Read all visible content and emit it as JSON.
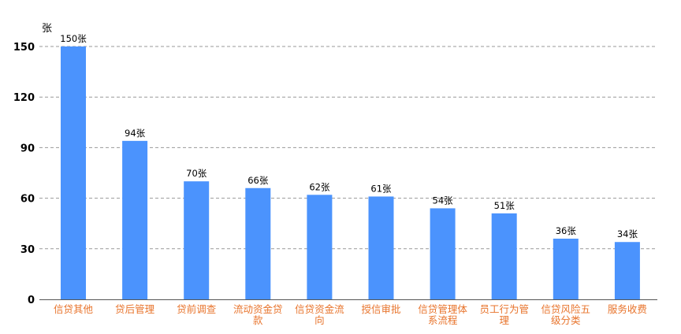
{
  "chart_data": {
    "type": "bar",
    "categories": [
      "信贷其他",
      "贷后管理",
      "贷前调查",
      "流动资金贷款",
      "信贷资金流向",
      "授信审批",
      "信贷管理体系流程",
      "员工行为管理",
      "信贷风险五级分类",
      "服务收费"
    ],
    "category_lines": [
      [
        "信贷其他"
      ],
      [
        "贷后管理"
      ],
      [
        "贷前调查"
      ],
      [
        "流动资金贷",
        "款"
      ],
      [
        "信贷资金流",
        "向"
      ],
      [
        "授信审批"
      ],
      [
        "信贷管理体",
        "系流程"
      ],
      [
        "员工行为管",
        "理"
      ],
      [
        "信贷风险五",
        "级分类"
      ],
      [
        "服务收费"
      ]
    ],
    "values": [
      150,
      94,
      70,
      66,
      62,
      61,
      54,
      51,
      36,
      34
    ],
    "data_labels": [
      "150张",
      "94张",
      "70张",
      "66张",
      "62张",
      "61张",
      "54张",
      "51张",
      "36张",
      "34张"
    ],
    "y_unit": "张",
    "yticks": [
      0,
      30,
      60,
      90,
      120,
      150
    ],
    "ylim": [
      0,
      150
    ],
    "grid": true,
    "legend": "none",
    "colors": {
      "bar": "#4b93fd",
      "xlabel": "#e8742c",
      "grid": "#999999",
      "axis": "#555555"
    }
  }
}
